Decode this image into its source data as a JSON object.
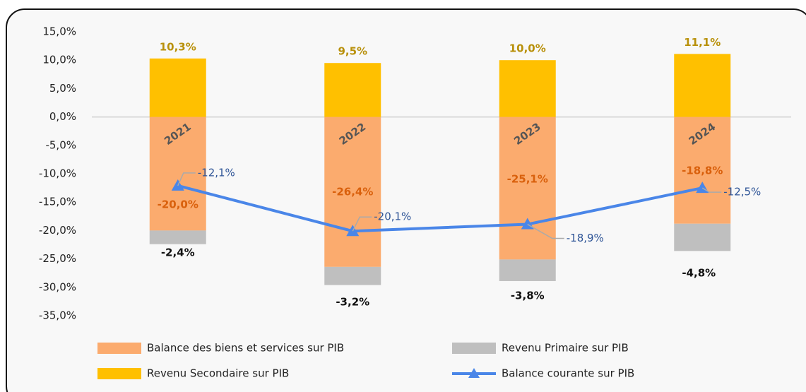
{
  "chart_data": {
    "type": "bar",
    "categories": [
      "2021",
      "2022",
      "2023",
      "2024"
    ],
    "ylim": [
      -35,
      15
    ],
    "yticks": [
      {
        "value": 15,
        "label": "15,0%"
      },
      {
        "value": 10,
        "label": "10,0%"
      },
      {
        "value": 5,
        "label": "5,0%"
      },
      {
        "value": 0,
        "label": "0,0%"
      },
      {
        "value": -5,
        "label": "-5,0%"
      },
      {
        "value": -10,
        "label": "-10,0%"
      },
      {
        "value": -15,
        "label": "-15,0%"
      },
      {
        "value": -20,
        "label": "-20,0%"
      },
      {
        "value": -25,
        "label": "-25,0%"
      },
      {
        "value": -30,
        "label": "-30,0%"
      },
      {
        "value": -35,
        "label": "-35,0%"
      }
    ],
    "grid": false,
    "series": [
      {
        "name": "Balance des biens et services sur PIB",
        "color": "#fbab6e",
        "values": [
          -20.0,
          -26.4,
          -25.1,
          -18.8
        ],
        "value_labels": [
          "-20,0%",
          "-26,4%",
          "-25,1%",
          "-18,8%"
        ]
      },
      {
        "name": "Revenu Primaire sur PIB",
        "color": "#bfbfbf",
        "values": [
          -2.4,
          -3.2,
          -3.8,
          -4.8
        ],
        "value_labels": [
          "-2,4%",
          "-3,2%",
          "-3,8%",
          "-4,8%"
        ]
      },
      {
        "name": "Revenu Secondaire sur PIB",
        "color": "#ffc000",
        "values": [
          10.3,
          9.5,
          10.0,
          11.1
        ],
        "value_labels": [
          "10,3%",
          "9,5%",
          "10,0%",
          "11,1%"
        ]
      },
      {
        "name": "Balance courante sur PIB",
        "type": "line",
        "color": "#4a86e8",
        "values": [
          -12.1,
          -20.1,
          -18.9,
          -12.5
        ],
        "value_labels": [
          "-12,1%",
          "-20,1%",
          "-18,9%",
          "-12,5%"
        ]
      }
    ]
  }
}
